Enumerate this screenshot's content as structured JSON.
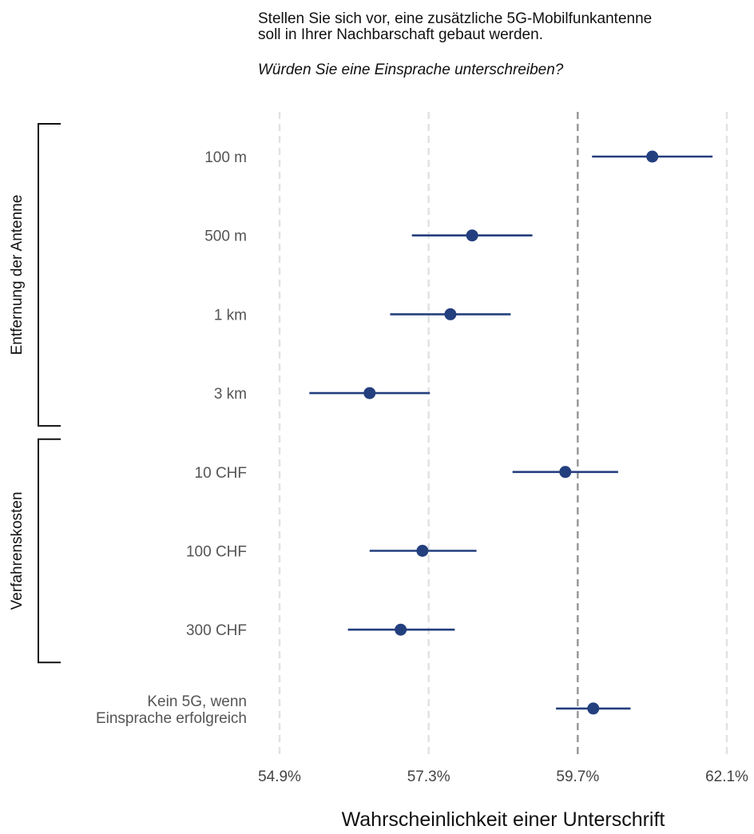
{
  "title_lines": [
    "Stellen Sie sich vor, eine zusätzliche 5G-Mobilfunkantenne",
    "soll in Ihrer Nachbarschaft gebaut werden."
  ],
  "question": "Würden Sie eine Einsprache unterschreiben?",
  "chart_data": {
    "type": "scatter",
    "subtype": "dot-and-whisker",
    "xlabel": "Wahrscheinlichkeit einer Unterschrift",
    "x_ticks": [
      54.9,
      57.3,
      59.7,
      62.1
    ],
    "x_tick_labels": [
      "54.9%",
      "57.3%",
      "59.7%",
      "62.1%"
    ],
    "xlim": [
      54.9,
      62.1
    ],
    "reference_line": 59.7,
    "grid": "vertical dashed",
    "color": "#233f7e",
    "groups": [
      {
        "label": "Entfernung der Antenne",
        "items": [
          0,
          1,
          2,
          3
        ]
      },
      {
        "label": "Verfahrenskosten",
        "items": [
          4,
          5,
          6
        ]
      }
    ],
    "items": [
      {
        "label": [
          "100 m"
        ],
        "estimate": 60.9,
        "low": 59.93,
        "high": 61.87
      },
      {
        "label": [
          "500 m"
        ],
        "estimate": 58.0,
        "low": 57.03,
        "high": 58.97
      },
      {
        "label": [
          "1 km"
        ],
        "estimate": 57.65,
        "low": 56.68,
        "high": 58.62
      },
      {
        "label": [
          "3 km"
        ],
        "estimate": 56.35,
        "low": 55.38,
        "high": 57.32
      },
      {
        "label": [
          "10 CHF"
        ],
        "estimate": 59.5,
        "low": 58.65,
        "high": 60.35
      },
      {
        "label": [
          "100 CHF"
        ],
        "estimate": 57.2,
        "low": 56.35,
        "high": 58.07
      },
      {
        "label": [
          "300 CHF"
        ],
        "estimate": 56.85,
        "low": 56.0,
        "high": 57.72
      },
      {
        "label": [
          "Kein 5G, wenn",
          "Einsprache erfolgreich"
        ],
        "estimate": 59.95,
        "low": 59.35,
        "high": 60.55
      }
    ]
  }
}
